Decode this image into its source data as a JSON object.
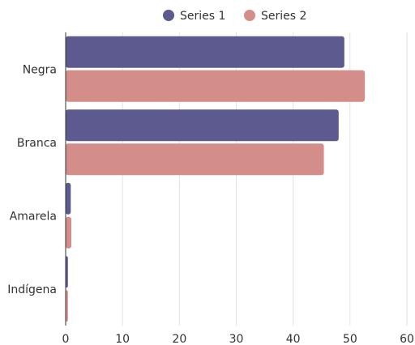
{
  "chart_data": {
    "type": "bar",
    "orientation": "horizontal",
    "categories": [
      "Negra",
      "Branca",
      "Amarela",
      "Indígena"
    ],
    "series": [
      {
        "name": "Series 1",
        "color": "#5c5a8f",
        "values": [
          49,
          48,
          0.9,
          0.4
        ]
      },
      {
        "name": "Series 2",
        "color": "#d48e8a",
        "values": [
          52.6,
          45.4,
          1.0,
          0.4
        ]
      }
    ],
    "xlim": [
      0,
      60
    ],
    "xticks": [
      0,
      10,
      20,
      30,
      40,
      50,
      60
    ],
    "grid": true,
    "legend_position": "top"
  }
}
